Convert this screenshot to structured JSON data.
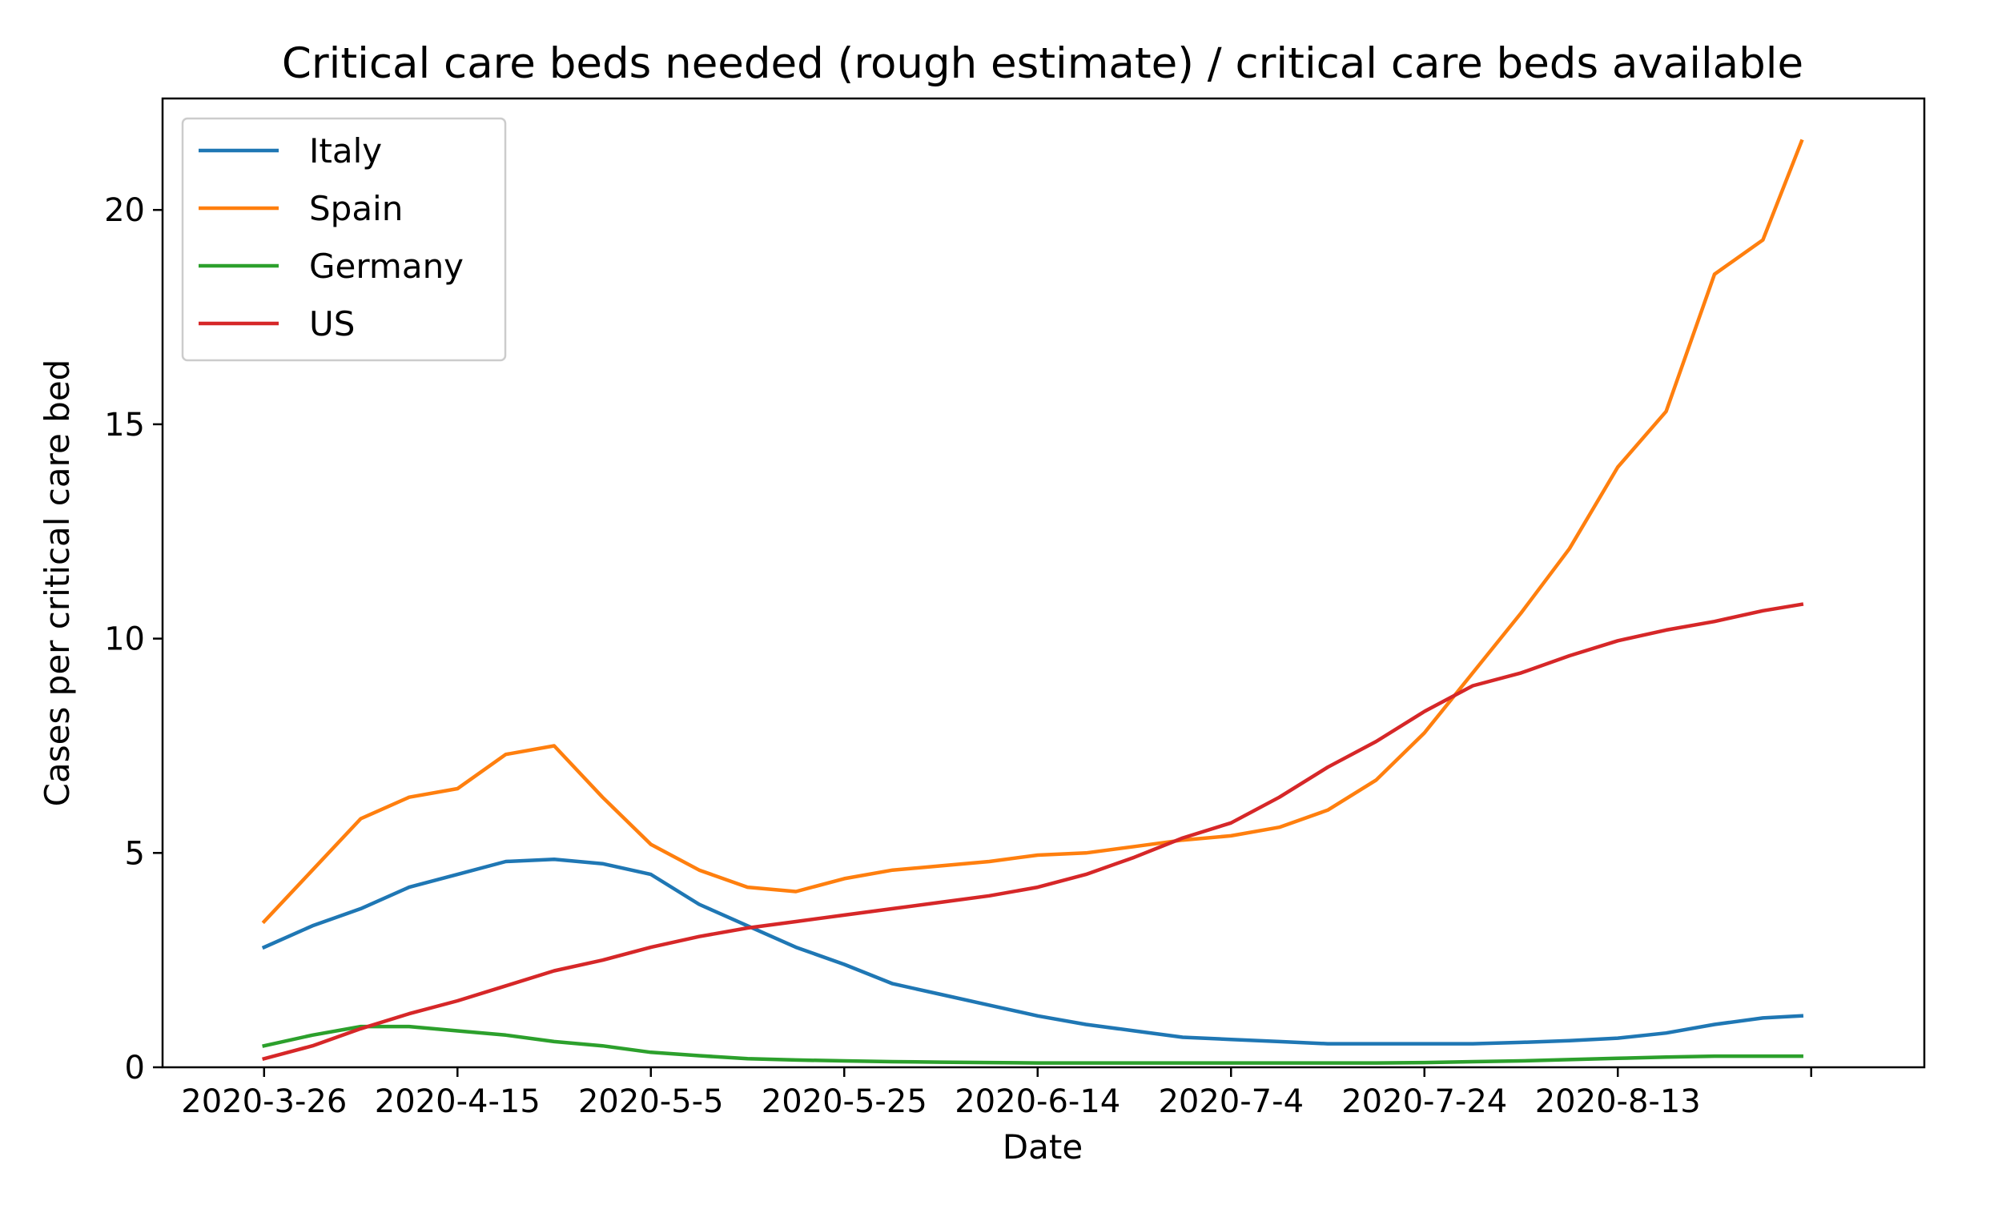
{
  "chart_data": {
    "type": "line",
    "title": "Critical care beds needed (rough estimate) / critical care beds available",
    "xlabel": "Date",
    "ylabel": "Cases per critical care bed",
    "x_start": "2020-3-26",
    "x_tick_labels": [
      "2020-3-26",
      "2020-4-15",
      "2020-5-5",
      "2020-5-25",
      "2020-6-14",
      "2020-7-4",
      "2020-7-24",
      "2020-8-13"
    ],
    "y_ticks": [
      0,
      5,
      10,
      15,
      20
    ],
    "ylim": [
      0,
      22.6
    ],
    "grid": false,
    "legend_position": "upper left",
    "x": [
      "2020-3-26",
      "2020-3-31",
      "2020-4-5",
      "2020-4-10",
      "2020-4-15",
      "2020-4-20",
      "2020-4-25",
      "2020-4-30",
      "2020-5-5",
      "2020-5-10",
      "2020-5-15",
      "2020-5-20",
      "2020-5-25",
      "2020-5-30",
      "2020-6-4",
      "2020-6-9",
      "2020-6-14",
      "2020-6-19",
      "2020-6-24",
      "2020-6-29",
      "2020-7-4",
      "2020-7-9",
      "2020-7-14",
      "2020-7-19",
      "2020-7-24",
      "2020-7-29",
      "2020-8-3",
      "2020-8-8",
      "2020-8-13",
      "2020-8-18",
      "2020-8-23",
      "2020-8-28",
      "2020-9-1"
    ],
    "series": [
      {
        "name": "Italy",
        "color": "#1f77b4",
        "values": [
          2.8,
          3.3,
          3.7,
          4.2,
          4.5,
          4.8,
          4.85,
          4.75,
          4.5,
          3.8,
          3.3,
          2.8,
          2.4,
          1.95,
          1.7,
          1.45,
          1.2,
          1.0,
          0.85,
          0.7,
          0.65,
          0.6,
          0.55,
          0.55,
          0.55,
          0.55,
          0.58,
          0.62,
          0.68,
          0.8,
          1.0,
          1.15,
          1.2
        ]
      },
      {
        "name": "Spain",
        "color": "#ff7f0e",
        "values": [
          3.4,
          4.6,
          5.8,
          6.3,
          6.5,
          7.3,
          7.5,
          6.3,
          5.2,
          4.6,
          4.2,
          4.1,
          4.4,
          4.6,
          4.7,
          4.8,
          4.95,
          5.0,
          5.15,
          5.3,
          5.4,
          5.6,
          6.0,
          6.7,
          7.8,
          9.2,
          10.6,
          12.1,
          14.0,
          15.3,
          18.5,
          19.3,
          21.6
        ]
      },
      {
        "name": "Germany",
        "color": "#2ca02c",
        "values": [
          0.5,
          0.75,
          0.95,
          0.95,
          0.85,
          0.75,
          0.6,
          0.5,
          0.35,
          0.27,
          0.2,
          0.17,
          0.15,
          0.13,
          0.12,
          0.11,
          0.1,
          0.1,
          0.1,
          0.1,
          0.1,
          0.1,
          0.1,
          0.1,
          0.11,
          0.13,
          0.15,
          0.18,
          0.21,
          0.24,
          0.26,
          0.26,
          0.26
        ]
      },
      {
        "name": "US",
        "color": "#d62728",
        "values": [
          0.2,
          0.5,
          0.9,
          1.25,
          1.55,
          1.9,
          2.25,
          2.5,
          2.8,
          3.05,
          3.25,
          3.4,
          3.55,
          3.7,
          3.85,
          4.0,
          4.2,
          4.5,
          4.9,
          5.35,
          5.7,
          6.3,
          7.0,
          7.6,
          8.3,
          8.9,
          9.2,
          9.6,
          9.95,
          10.2,
          10.4,
          10.65,
          10.8
        ]
      }
    ]
  }
}
